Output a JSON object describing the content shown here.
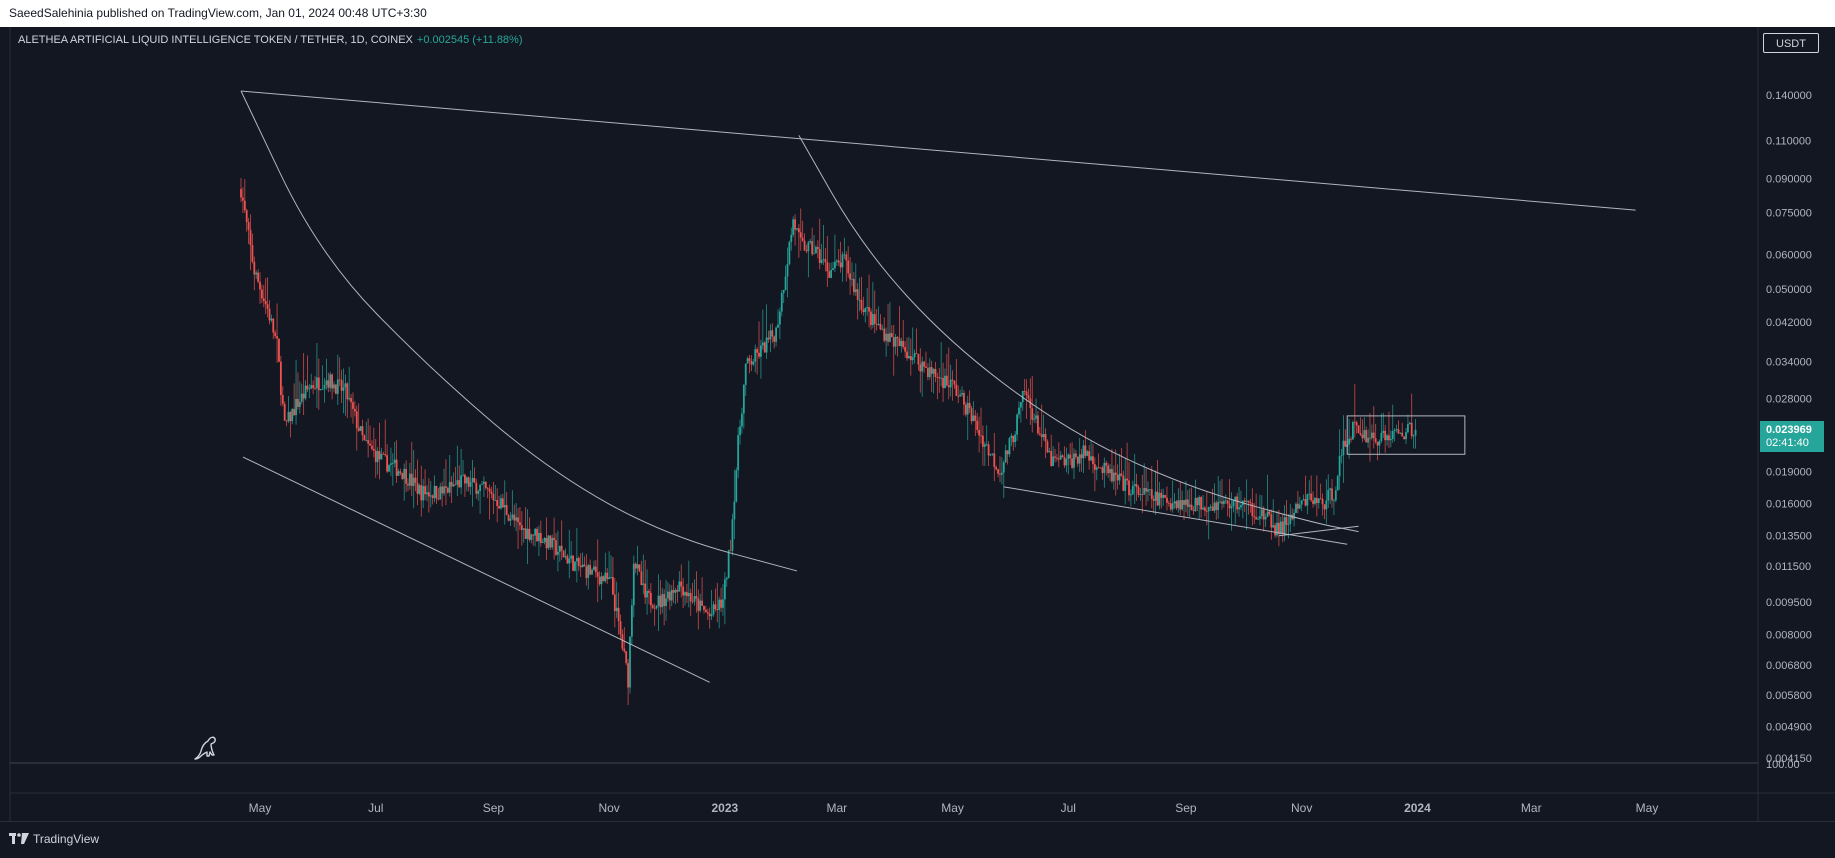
{
  "header": {
    "published": "SaeedSalehinia published on TradingView.com, Jan 01, 2024 00:48 UTC+3:30"
  },
  "legend": {
    "symbol": "ALETHEA ARTIFICIAL LIQUID INTELLIGENCE TOKEN / TETHER, 1D, COINEX",
    "change": "+0.002545 (+11.88%)"
  },
  "price_axis": {
    "unit": "USDT"
  },
  "last_price": {
    "value": "0.023969",
    "countdown": "02:41:40"
  },
  "footer": {
    "brand": "TradingView"
  },
  "colors": {
    "up": "#26a69a",
    "down": "#ef5350",
    "background": "#131722",
    "drawing": "#b2b5be"
  },
  "chart_data": {
    "type": "candlestick",
    "y_scale": "log",
    "y_ticks": [
      "0.140000",
      "0.110000",
      "0.090000",
      "0.075000",
      "0.060000",
      "0.050000",
      "0.042000",
      "0.034000",
      "0.028000",
      "0.019000",
      "0.016000",
      "0.013500",
      "0.011500",
      "0.009500",
      "0.008000",
      "0.006800",
      "0.005800",
      "0.004900",
      "0.004150"
    ],
    "x_ticks": [
      {
        "label": "May",
        "date": "2022-05-01",
        "bold": false
      },
      {
        "label": "Jul",
        "date": "2022-07-01",
        "bold": false
      },
      {
        "label": "Sep",
        "date": "2022-09-01",
        "bold": false
      },
      {
        "label": "Nov",
        "date": "2022-11-01",
        "bold": false
      },
      {
        "label": "2023",
        "date": "2023-01-01",
        "bold": true
      },
      {
        "label": "Mar",
        "date": "2023-03-01",
        "bold": false
      },
      {
        "label": "May",
        "date": "2023-05-01",
        "bold": false
      },
      {
        "label": "Jul",
        "date": "2023-07-01",
        "bold": false
      },
      {
        "label": "Sep",
        "date": "2023-09-01",
        "bold": false
      },
      {
        "label": "Nov",
        "date": "2023-11-01",
        "bold": false
      },
      {
        "label": "2024",
        "date": "2024-01-01",
        "bold": true
      },
      {
        "label": "Mar",
        "date": "2024-03-01",
        "bold": false
      },
      {
        "label": "May",
        "date": "2024-05-01",
        "bold": false
      }
    ],
    "volume_axis_label": "100.00",
    "price_path": [
      [
        "2022-04-21",
        0.085
      ],
      [
        "2022-04-24",
        0.07
      ],
      [
        "2022-04-28",
        0.055
      ],
      [
        "2022-05-05",
        0.045
      ],
      [
        "2022-05-10",
        0.037
      ],
      [
        "2022-05-14",
        0.024
      ],
      [
        "2022-05-20",
        0.027
      ],
      [
        "2022-05-28",
        0.03
      ],
      [
        "2022-06-05",
        0.031
      ],
      [
        "2022-06-15",
        0.029
      ],
      [
        "2022-06-25",
        0.022
      ],
      [
        "2022-07-05",
        0.02
      ],
      [
        "2022-07-15",
        0.019
      ],
      [
        "2022-07-25",
        0.017
      ],
      [
        "2022-08-05",
        0.017
      ],
      [
        "2022-08-15",
        0.018
      ],
      [
        "2022-08-25",
        0.0175
      ],
      [
        "2022-09-05",
        0.016
      ],
      [
        "2022-09-15",
        0.014
      ],
      [
        "2022-09-25",
        0.0135
      ],
      [
        "2022-10-05",
        0.0125
      ],
      [
        "2022-10-15",
        0.0115
      ],
      [
        "2022-10-25",
        0.011
      ],
      [
        "2022-11-02",
        0.0105
      ],
      [
        "2022-11-08",
        0.0075
      ],
      [
        "2022-11-11",
        0.0063
      ],
      [
        "2022-11-14",
        0.012
      ],
      [
        "2022-11-20",
        0.0097
      ],
      [
        "2022-11-28",
        0.0095
      ],
      [
        "2022-12-08",
        0.0105
      ],
      [
        "2022-12-16",
        0.0095
      ],
      [
        "2022-12-24",
        0.0088
      ],
      [
        "2022-12-31",
        0.0095
      ],
      [
        "2023-01-04",
        0.013
      ],
      [
        "2023-01-08",
        0.022
      ],
      [
        "2023-01-12",
        0.033
      ],
      [
        "2023-01-20",
        0.036
      ],
      [
        "2023-01-28",
        0.04
      ],
      [
        "2023-02-02",
        0.055
      ],
      [
        "2023-02-06",
        0.072
      ],
      [
        "2023-02-10",
        0.063
      ],
      [
        "2023-02-18",
        0.061
      ],
      [
        "2023-02-25",
        0.055
      ],
      [
        "2023-03-05",
        0.058
      ],
      [
        "2023-03-12",
        0.048
      ],
      [
        "2023-03-20",
        0.042
      ],
      [
        "2023-03-28",
        0.039
      ],
      [
        "2023-04-10",
        0.035
      ],
      [
        "2023-04-20",
        0.032
      ],
      [
        "2023-05-01",
        0.03
      ],
      [
        "2023-05-10",
        0.026
      ],
      [
        "2023-05-18",
        0.022
      ],
      [
        "2023-05-26",
        0.019
      ],
      [
        "2023-06-02",
        0.023
      ],
      [
        "2023-06-08",
        0.029
      ],
      [
        "2023-06-15",
        0.024
      ],
      [
        "2023-06-22",
        0.02
      ],
      [
        "2023-07-01",
        0.02
      ],
      [
        "2023-07-10",
        0.021
      ],
      [
        "2023-07-20",
        0.019
      ],
      [
        "2023-08-01",
        0.0175
      ],
      [
        "2023-08-15",
        0.0165
      ],
      [
        "2023-09-01",
        0.016
      ],
      [
        "2023-09-15",
        0.016
      ],
      [
        "2023-10-01",
        0.016
      ],
      [
        "2023-10-12",
        0.015
      ],
      [
        "2023-10-20",
        0.0138
      ],
      [
        "2023-10-28",
        0.0152
      ],
      [
        "2023-11-05",
        0.0165
      ],
      [
        "2023-11-12",
        0.016
      ],
      [
        "2023-11-18",
        0.017
      ],
      [
        "2023-11-22",
        0.021
      ],
      [
        "2023-11-28",
        0.024
      ],
      [
        "2023-12-05",
        0.023
      ],
      [
        "2023-12-12",
        0.0225
      ],
      [
        "2023-12-18",
        0.023
      ],
      [
        "2023-12-25",
        0.0235
      ],
      [
        "2023-12-31",
        0.02397
      ]
    ],
    "drawings": [
      {
        "kind": "trendline",
        "points": [
          [
            "2022-04-21",
            0.143
          ],
          [
            "2024-04-25",
            0.076
          ]
        ]
      },
      {
        "kind": "trendline",
        "points": [
          [
            "2022-04-22",
            0.0205
          ],
          [
            "2022-12-24",
            0.0062
          ]
        ]
      },
      {
        "kind": "trendline",
        "points": [
          [
            "2023-05-28",
            0.0175
          ],
          [
            "2023-11-25",
            0.0129
          ]
        ]
      },
      {
        "kind": "trendline",
        "points": [
          [
            "2023-10-20",
            0.0135
          ],
          [
            "2023-12-01",
            0.0142
          ]
        ]
      },
      {
        "kind": "curve",
        "points": [
          [
            "2022-04-21",
            0.143
          ],
          [
            "2022-06-01",
            0.06
          ],
          [
            "2022-08-01",
            0.032
          ],
          [
            "2022-10-01",
            0.019
          ],
          [
            "2022-12-01",
            0.0135
          ],
          [
            "2023-02-08",
            0.0112
          ]
        ]
      },
      {
        "kind": "curve",
        "points": [
          [
            "2023-02-09",
            0.113
          ],
          [
            "2023-03-15",
            0.062
          ],
          [
            "2023-05-01",
            0.037
          ],
          [
            "2023-07-01",
            0.0235
          ],
          [
            "2023-09-01",
            0.0175
          ],
          [
            "2023-11-06",
            0.0145
          ],
          [
            "2023-12-01",
            0.0138
          ]
        ]
      },
      {
        "kind": "rectangle",
        "points": [
          [
            "2023-11-25",
            0.0255
          ],
          [
            "2024-01-26",
            0.0208
          ]
        ]
      }
    ]
  }
}
